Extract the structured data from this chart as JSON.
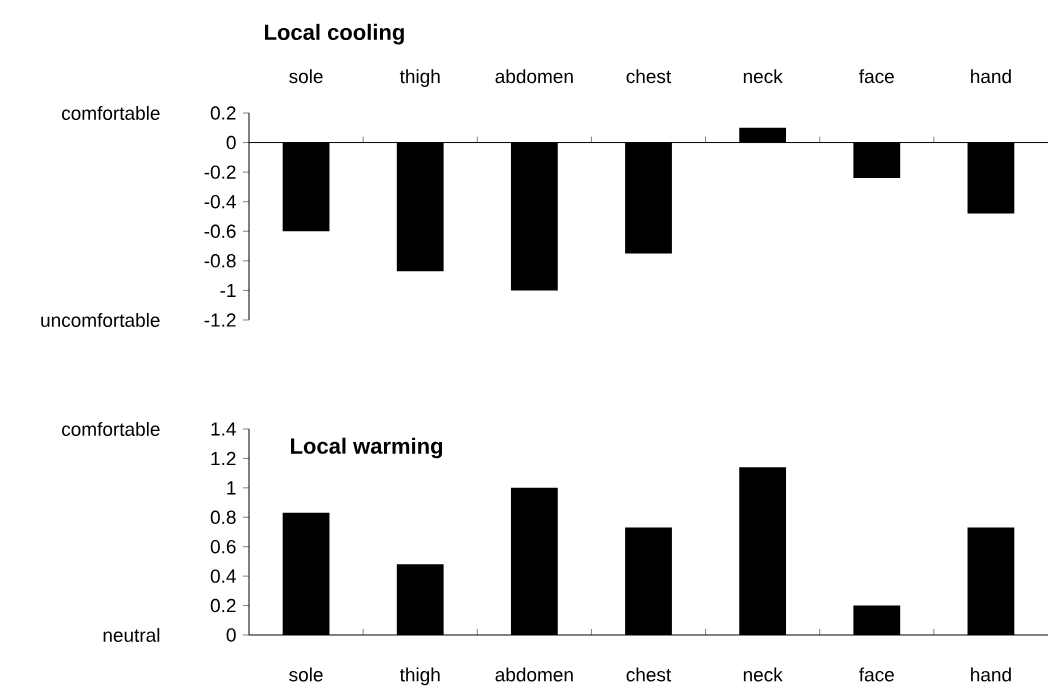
{
  "chart_data": [
    {
      "type": "bar",
      "title": "Local cooling",
      "categories": [
        "sole",
        "thigh",
        "abdomen",
        "chest",
        "neck",
        "face",
        "hand"
      ],
      "values": [
        -0.6,
        -0.87,
        -1,
        -0.75,
        0.1,
        -0.24,
        -0.48
      ],
      "color": "#000000",
      "ylim": [
        -1.2,
        0.2
      ],
      "yticks": [
        0.2,
        0,
        -0.2,
        -0.4,
        -0.6,
        -0.8,
        -1,
        -1.2
      ],
      "annotations": [
        "comfortable",
        "uncomfortable"
      ]
    },
    {
      "type": "bar",
      "title": "Local warming",
      "categories": [
        "sole",
        "thigh",
        "abdomen",
        "chest",
        "neck",
        "face",
        "hand"
      ],
      "values": [
        0.83,
        0.48,
        1,
        0.73,
        1.14,
        0.2,
        0.73
      ],
      "color": "#000000",
      "ylim": [
        0,
        1.4
      ],
      "yticks": [
        1.4,
        1.2,
        1,
        0.8,
        0.6,
        0.4,
        0.2,
        0
      ],
      "annotations": [
        "comfortable",
        "neutral"
      ]
    }
  ]
}
